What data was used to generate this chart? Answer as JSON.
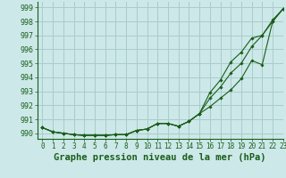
{
  "title": "Graphe pression niveau de la mer (hPa)",
  "background_color": "#cce8e8",
  "grid_color": "#aacccc",
  "line_color": "#1a5e1a",
  "xlim": [
    -0.5,
    23
  ],
  "ylim": [
    989.6,
    999.4
  ],
  "yticks": [
    990,
    991,
    992,
    993,
    994,
    995,
    996,
    997,
    998,
    999
  ],
  "xticks": [
    0,
    1,
    2,
    3,
    4,
    5,
    6,
    7,
    8,
    9,
    10,
    11,
    12,
    13,
    14,
    15,
    16,
    17,
    18,
    19,
    20,
    21,
    22,
    23
  ],
  "series1": [
    990.4,
    990.1,
    990.0,
    989.9,
    989.85,
    989.85,
    989.85,
    989.9,
    989.9,
    990.2,
    990.3,
    990.7,
    990.7,
    990.5,
    990.85,
    991.4,
    991.9,
    992.5,
    993.1,
    993.9,
    995.2,
    994.9,
    998.0,
    998.9
  ],
  "series2": [
    990.4,
    990.1,
    990.0,
    989.9,
    989.85,
    989.85,
    989.85,
    989.9,
    989.9,
    990.2,
    990.3,
    990.7,
    990.7,
    990.5,
    990.85,
    991.4,
    992.5,
    993.3,
    994.3,
    995.0,
    996.2,
    997.0,
    998.0,
    998.9
  ],
  "series3": [
    990.4,
    990.1,
    990.0,
    989.9,
    989.85,
    989.85,
    989.85,
    989.9,
    989.9,
    990.2,
    990.3,
    990.7,
    990.7,
    990.5,
    990.85,
    991.4,
    992.9,
    993.8,
    995.1,
    995.8,
    996.8,
    997.0,
    998.1,
    998.9
  ],
  "title_fontsize": 7.5,
  "tick_fontsize": 6.0,
  "figwidth": 3.2,
  "figheight": 2.0,
  "dpi": 100
}
